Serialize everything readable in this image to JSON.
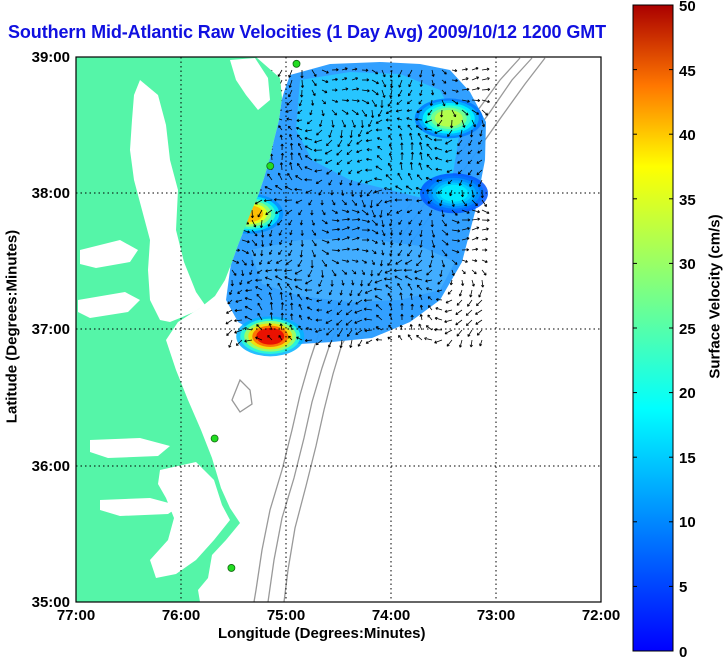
{
  "title": "Southern Mid-Atlantic Raw Velocities (1 Day Avg) 2009/10/12 1200 GMT",
  "map": {
    "xlabel": "Longitude (Degrees:Minutes)",
    "ylabel": "Latitude (Degrees:Minutes)",
    "x_ticks": [
      "77:00",
      "76:00",
      "75:00",
      "74:00",
      "73:00",
      "72:00"
    ],
    "y_ticks": [
      "39:00",
      "38:00",
      "37:00",
      "36:00",
      "35:00"
    ],
    "lon_range": [
      -77,
      -72
    ],
    "lat_range": [
      35,
      39
    ],
    "grid": true,
    "colors": {
      "land": "#55f5a8",
      "ocean": "#ffffff",
      "frame": "#000000",
      "bathymetry": "#999999",
      "station": "#22dd22"
    }
  },
  "colorbar": {
    "label": "Surface Velocity (cm/s)",
    "range": [
      0,
      50
    ],
    "ticks": [
      "50",
      "45",
      "40",
      "35",
      "30",
      "25",
      "20",
      "15",
      "10",
      "5",
      "0"
    ],
    "colormap": "jet"
  },
  "chart_data": {
    "type": "heatmap",
    "title": "Southern Mid-Atlantic Raw Velocities (1 Day Avg) 2009/10/12 1200 GMT",
    "xlabel": "Longitude (Degrees:Minutes)",
    "ylabel": "Latitude (Degrees:Minutes)",
    "xlim": [
      -77,
      -72
    ],
    "ylim": [
      35,
      39
    ],
    "value_label": "Surface Velocity (cm/s)",
    "value_range": [
      0,
      50
    ],
    "background_speed_cm_s": 9,
    "hotspots": [
      {
        "lon": -75.15,
        "lat": 36.95,
        "speed_cm_s": 45
      },
      {
        "lon": -75.35,
        "lat": 37.85,
        "speed_cm_s": 35
      },
      {
        "lon": -73.45,
        "lat": 38.55,
        "speed_cm_s": 28
      },
      {
        "lon": -73.4,
        "lat": 38.0,
        "speed_cm_s": 18
      }
    ],
    "stations": [
      {
        "lon": -74.9,
        "lat": 38.95
      },
      {
        "lon": -75.15,
        "lat": 38.2
      },
      {
        "lon": -75.68,
        "lat": 36.2
      },
      {
        "lon": -75.52,
        "lat": 35.25
      }
    ]
  }
}
